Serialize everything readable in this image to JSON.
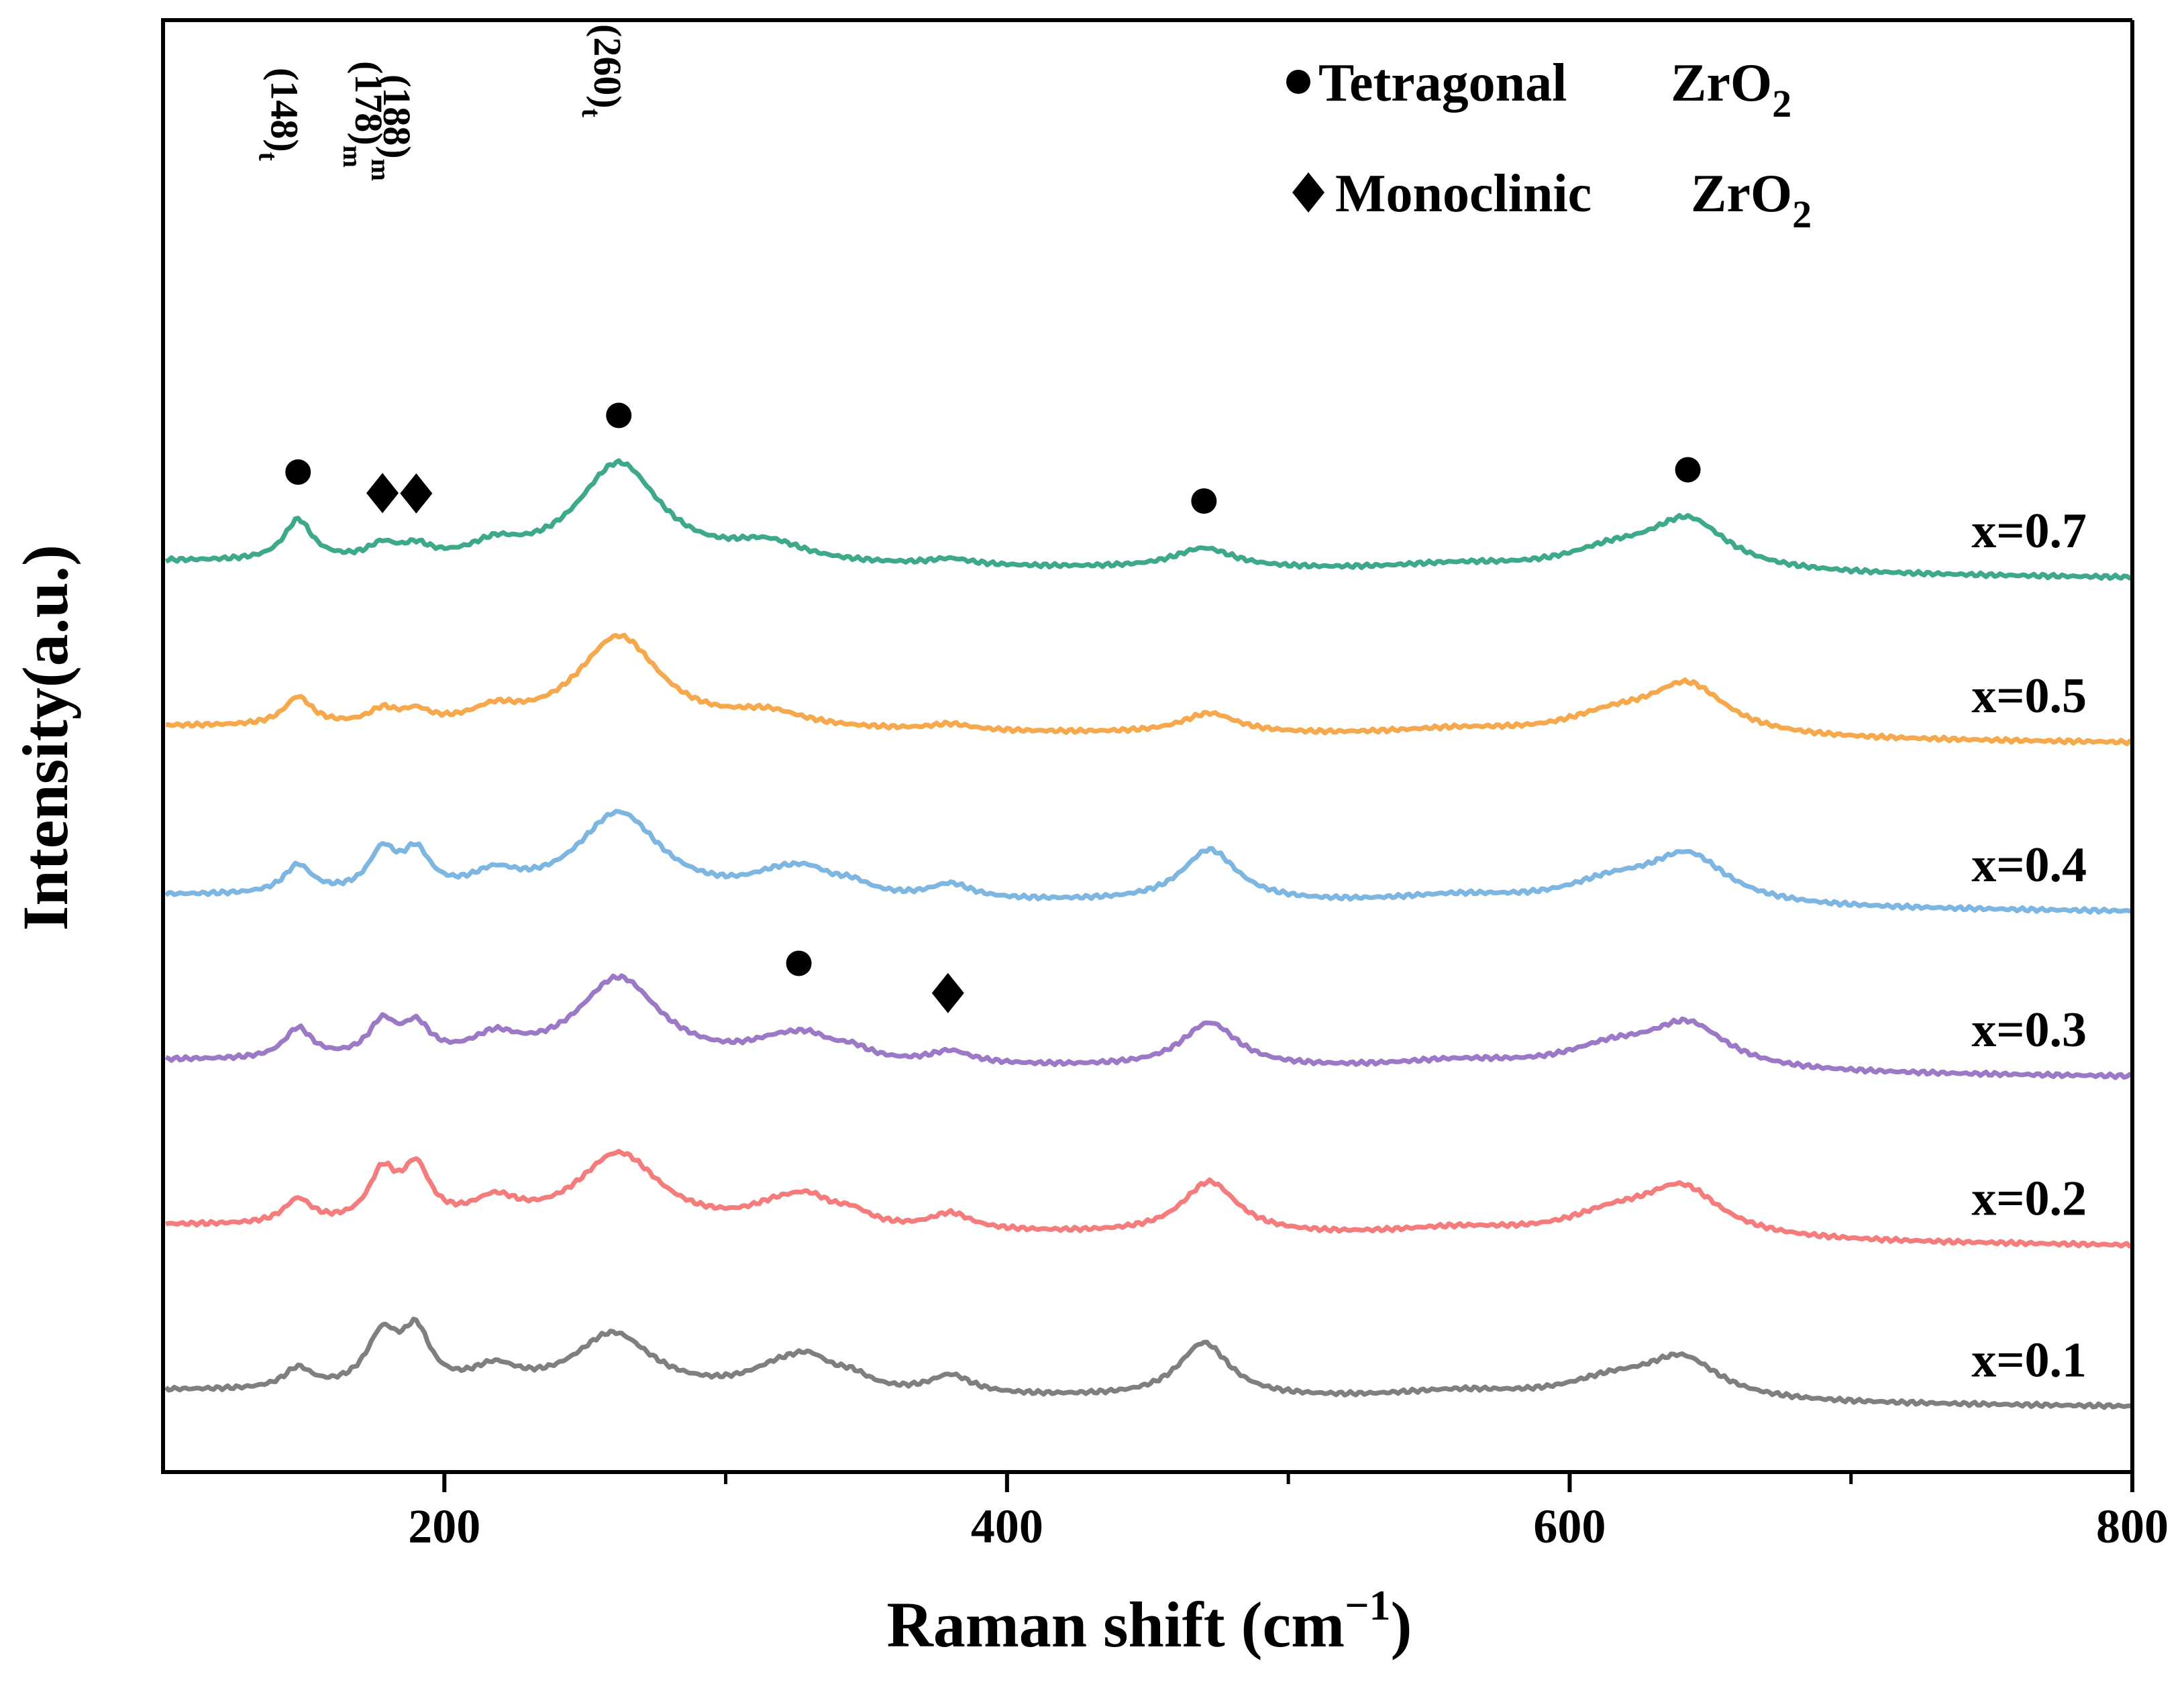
{
  "chart_data": {
    "type": "line",
    "title": "",
    "xlabel": "Raman shift (cm",
    "xlabel_sup": "−1",
    "xlabel_close": ")",
    "ylabel": "Intensity(a.u.)",
    "xlim": [
      100,
      800
    ],
    "x_ticks_major": [
      200,
      400,
      600,
      800
    ],
    "x_ticks_minor": [
      300,
      500,
      700
    ],
    "legend": {
      "position": "top-right",
      "entries": [
        {
          "marker": "circle",
          "label": "Tetragonal",
          "formula": "ZrO",
          "subscript": "2"
        },
        {
          "marker": "diamond",
          "label": "Monoclinic",
          "formula": "ZrO",
          "subscript": "2"
        }
      ]
    },
    "peak_labels": [
      {
        "text": "(148)",
        "subscript": "t",
        "x": 148
      },
      {
        "text": "(178)",
        "subscript": "m",
        "x": 178
      },
      {
        "text": "(188)",
        "subscript": "m",
        "x": 188
      },
      {
        "text": "(260)",
        "subscript": "t",
        "x": 260
      }
    ],
    "series": [
      {
        "name": "x=0.1",
        "color": "#7f7f7f",
        "offset": 0.0,
        "baseline": [
          [
            100,
            0.02
          ],
          [
            800,
            -0.06
          ]
        ],
        "peaks": [
          {
            "x": 148,
            "h": 0.1,
            "w": 6
          },
          {
            "x": 178,
            "h": 0.26,
            "w": 7
          },
          {
            "x": 190,
            "h": 0.26,
            "w": 6
          },
          {
            "x": 218,
            "h": 0.1,
            "w": 10
          },
          {
            "x": 260,
            "h": 0.29,
            "w": 17
          },
          {
            "x": 319,
            "h": 0.1,
            "w": 14
          },
          {
            "x": 330,
            "h": 0.12,
            "w": 10
          },
          {
            "x": 345,
            "h": 0.06,
            "w": 8
          },
          {
            "x": 380,
            "h": 0.09,
            "w": 9
          },
          {
            "x": 470,
            "h": 0.27,
            "w": 11
          },
          {
            "x": 560,
            "h": 0.04,
            "w": 28
          },
          {
            "x": 615,
            "h": 0.09,
            "w": 20
          },
          {
            "x": 640,
            "h": 0.2,
            "w": 16
          }
        ]
      },
      {
        "name": "x=0.2",
        "color": "#f47c7c",
        "offset": 0.82,
        "baseline": [
          [
            100,
            0.02
          ],
          [
            800,
            -0.08
          ]
        ],
        "peaks": [
          {
            "x": 148,
            "h": 0.12,
            "w": 6
          },
          {
            "x": 178,
            "h": 0.24,
            "w": 6
          },
          {
            "x": 190,
            "h": 0.26,
            "w": 6
          },
          {
            "x": 218,
            "h": 0.11,
            "w": 10
          },
          {
            "x": 262,
            "h": 0.37,
            "w": 18
          },
          {
            "x": 319,
            "h": 0.09,
            "w": 14
          },
          {
            "x": 330,
            "h": 0.1,
            "w": 10
          },
          {
            "x": 345,
            "h": 0.06,
            "w": 8
          },
          {
            "x": 380,
            "h": 0.08,
            "w": 9
          },
          {
            "x": 472,
            "h": 0.26,
            "w": 12
          },
          {
            "x": 560,
            "h": 0.04,
            "w": 28
          },
          {
            "x": 615,
            "h": 0.1,
            "w": 20
          },
          {
            "x": 640,
            "h": 0.24,
            "w": 17
          }
        ]
      },
      {
        "name": "x=0.3",
        "color": "#9b79c6",
        "offset": 1.64,
        "baseline": [
          [
            100,
            0.02
          ],
          [
            800,
            -0.06
          ]
        ],
        "peaks": [
          {
            "x": 148,
            "h": 0.15,
            "w": 6
          },
          {
            "x": 178,
            "h": 0.17,
            "w": 6
          },
          {
            "x": 190,
            "h": 0.15,
            "w": 6
          },
          {
            "x": 218,
            "h": 0.1,
            "w": 10
          },
          {
            "x": 262,
            "h": 0.42,
            "w": 18
          },
          {
            "x": 319,
            "h": 0.08,
            "w": 14
          },
          {
            "x": 330,
            "h": 0.08,
            "w": 10
          },
          {
            "x": 345,
            "h": 0.05,
            "w": 8
          },
          {
            "x": 380,
            "h": 0.06,
            "w": 9
          },
          {
            "x": 472,
            "h": 0.22,
            "w": 12
          },
          {
            "x": 560,
            "h": 0.04,
            "w": 28
          },
          {
            "x": 615,
            "h": 0.1,
            "w": 20
          },
          {
            "x": 642,
            "h": 0.22,
            "w": 17
          }
        ]
      },
      {
        "name": "x=0.4",
        "color": "#7eb6e2",
        "offset": 2.46,
        "baseline": [
          [
            100,
            0.02
          ],
          [
            800,
            -0.06
          ]
        ],
        "peaks": [
          {
            "x": 148,
            "h": 0.14,
            "w": 6
          },
          {
            "x": 178,
            "h": 0.2,
            "w": 6
          },
          {
            "x": 190,
            "h": 0.19,
            "w": 6
          },
          {
            "x": 218,
            "h": 0.09,
            "w": 10
          },
          {
            "x": 262,
            "h": 0.42,
            "w": 18
          },
          {
            "x": 319,
            "h": 0.09,
            "w": 14
          },
          {
            "x": 330,
            "h": 0.08,
            "w": 10
          },
          {
            "x": 345,
            "h": 0.05,
            "w": 8
          },
          {
            "x": 380,
            "h": 0.07,
            "w": 9
          },
          {
            "x": 472,
            "h": 0.26,
            "w": 12
          },
          {
            "x": 560,
            "h": 0.04,
            "w": 28
          },
          {
            "x": 615,
            "h": 0.1,
            "w": 20
          },
          {
            "x": 642,
            "h": 0.24,
            "w": 17
          }
        ]
      },
      {
        "name": "x=0.5",
        "color": "#f6a94c",
        "offset": 3.3,
        "baseline": [
          [
            100,
            0.02
          ],
          [
            800,
            -0.06
          ]
        ],
        "peaks": [
          {
            "x": 148,
            "h": 0.14,
            "w": 6
          },
          {
            "x": 178,
            "h": 0.07,
            "w": 6
          },
          {
            "x": 190,
            "h": 0.06,
            "w": 6
          },
          {
            "x": 218,
            "h": 0.07,
            "w": 10
          },
          {
            "x": 262,
            "h": 0.46,
            "w": 18
          },
          {
            "x": 315,
            "h": 0.07,
            "w": 16
          },
          {
            "x": 380,
            "h": 0.03,
            "w": 9
          },
          {
            "x": 472,
            "h": 0.1,
            "w": 12
          },
          {
            "x": 560,
            "h": 0.03,
            "w": 28
          },
          {
            "x": 615,
            "h": 0.09,
            "w": 20
          },
          {
            "x": 642,
            "h": 0.25,
            "w": 17
          }
        ]
      },
      {
        "name": "x=0.7",
        "color": "#3ea98a",
        "offset": 4.12,
        "baseline": [
          [
            100,
            0.02
          ],
          [
            800,
            -0.06
          ]
        ],
        "peaks": [
          {
            "x": 148,
            "h": 0.2,
            "w": 6
          },
          {
            "x": 178,
            "h": 0.07,
            "w": 6
          },
          {
            "x": 190,
            "h": 0.06,
            "w": 6
          },
          {
            "x": 218,
            "h": 0.07,
            "w": 10
          },
          {
            "x": 262,
            "h": 0.5,
            "w": 18
          },
          {
            "x": 315,
            "h": 0.09,
            "w": 16
          },
          {
            "x": 380,
            "h": 0.03,
            "w": 9
          },
          {
            "x": 470,
            "h": 0.1,
            "w": 13
          },
          {
            "x": 560,
            "h": 0.03,
            "w": 28
          },
          {
            "x": 615,
            "h": 0.09,
            "w": 20
          },
          {
            "x": 642,
            "h": 0.25,
            "w": 17
          }
        ]
      }
    ],
    "peak_markers": [
      {
        "shape": "circle",
        "series": "x=0.7",
        "x": 148
      },
      {
        "shape": "diamond",
        "series": "x=0.7",
        "x": 178
      },
      {
        "shape": "diamond",
        "series": "x=0.7",
        "x": 190
      },
      {
        "shape": "circle",
        "series": "x=0.7",
        "x": 262
      },
      {
        "shape": "circle",
        "series": "x=0.7",
        "x": 470
      },
      {
        "shape": "circle",
        "series": "x=0.7",
        "x": 642
      },
      {
        "shape": "circle",
        "series": "x=0.3",
        "x": 326
      },
      {
        "shape": "diamond",
        "series": "x=0.3",
        "x": 379
      }
    ]
  }
}
